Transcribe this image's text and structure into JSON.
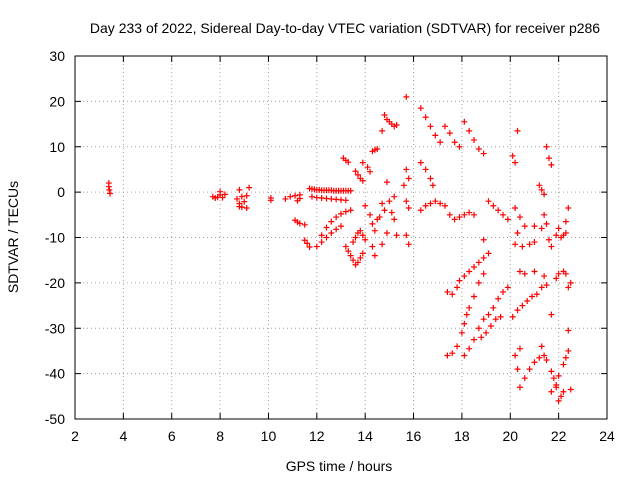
{
  "chart_data": {
    "type": "scatter",
    "title": "Day 233 of 2022, Sidereal Day-to-day VTEC variation (SDTVAR) for receiver p286",
    "xlabel": "GPS time / hours",
    "ylabel": "SDTVAR / TECUs",
    "xlim": [
      2,
      24
    ],
    "ylim": [
      -50,
      30
    ],
    "xticks": [
      2,
      4,
      6,
      8,
      10,
      12,
      14,
      16,
      18,
      20,
      22,
      24
    ],
    "yticks": [
      -50,
      -40,
      -30,
      -20,
      -10,
      0,
      10,
      20,
      30
    ],
    "grid": true,
    "marker": "+",
    "color": "#ff0000",
    "series": [
      {
        "name": "SDTVAR",
        "points": [
          [
            3.4,
            2.0
          ],
          [
            3.4,
            1.2
          ],
          [
            3.42,
            0.5
          ],
          [
            3.45,
            -0.3
          ],
          [
            7.7,
            -1.0
          ],
          [
            7.8,
            -1.3
          ],
          [
            7.9,
            -1.1
          ],
          [
            8.0,
            -0.6
          ],
          [
            8.1,
            -1.2
          ],
          [
            8.0,
            0.1
          ],
          [
            8.2,
            -0.5
          ],
          [
            8.7,
            -1.5
          ],
          [
            8.8,
            -2.5
          ],
          [
            8.9,
            -3.3
          ],
          [
            8.9,
            -1.0
          ],
          [
            8.8,
            0.5
          ],
          [
            9.0,
            -2.1
          ],
          [
            9.1,
            -0.8
          ],
          [
            9.2,
            1.0
          ],
          [
            9.1,
            -3.5
          ],
          [
            8.8,
            -3.2
          ],
          [
            10.1,
            -1.8
          ],
          [
            10.1,
            -1.3
          ],
          [
            10.7,
            -1.5
          ],
          [
            10.9,
            -1.0
          ],
          [
            11.1,
            -0.8
          ],
          [
            11.3,
            -0.6
          ],
          [
            11.3,
            -1.4
          ],
          [
            11.2,
            -1.9
          ],
          [
            11.1,
            -6.2
          ],
          [
            11.2,
            -6.6
          ],
          [
            11.3,
            -6.9
          ],
          [
            11.5,
            -7.2
          ],
          [
            11.5,
            -10.6
          ],
          [
            11.6,
            -11.3
          ],
          [
            11.7,
            -12.1
          ],
          [
            11.7,
            0.8
          ],
          [
            11.8,
            0.7
          ],
          [
            11.9,
            0.6
          ],
          [
            12.0,
            0.5
          ],
          [
            12.1,
            0.5
          ],
          [
            12.2,
            0.4
          ],
          [
            12.3,
            0.4
          ],
          [
            12.4,
            0.4
          ],
          [
            12.5,
            0.4
          ],
          [
            12.6,
            0.4
          ],
          [
            12.7,
            0.3
          ],
          [
            12.8,
            0.3
          ],
          [
            12.9,
            0.3
          ],
          [
            13.0,
            0.3
          ],
          [
            13.1,
            0.3
          ],
          [
            13.2,
            0.3
          ],
          [
            13.3,
            0.3
          ],
          [
            13.4,
            0.3
          ],
          [
            11.8,
            -1.0
          ],
          [
            12.0,
            -1.2
          ],
          [
            12.2,
            -1.3
          ],
          [
            12.4,
            -1.4
          ],
          [
            12.6,
            -1.5
          ],
          [
            12.8,
            -1.6
          ],
          [
            13.0,
            -1.7
          ],
          [
            13.2,
            -1.8
          ],
          [
            12.2,
            -9.5
          ],
          [
            12.4,
            -7.8
          ],
          [
            12.6,
            -6.5
          ],
          [
            12.8,
            -5.5
          ],
          [
            13.0,
            -4.8
          ],
          [
            13.2,
            -4.3
          ],
          [
            13.4,
            -4.0
          ],
          [
            12.0,
            -12.0
          ],
          [
            12.2,
            -11.0
          ],
          [
            12.4,
            -10.0
          ],
          [
            12.6,
            -9.0
          ],
          [
            12.8,
            -8.2
          ],
          [
            13.0,
            -7.5
          ],
          [
            13.1,
            7.5
          ],
          [
            13.2,
            7.0
          ],
          [
            13.3,
            6.6
          ],
          [
            13.6,
            4.6
          ],
          [
            13.7,
            3.8
          ],
          [
            13.8,
            3.0
          ],
          [
            13.9,
            2.5
          ],
          [
            13.2,
            -12.0
          ],
          [
            13.3,
            -13.0
          ],
          [
            13.4,
            -14.0
          ],
          [
            13.5,
            -15.0
          ],
          [
            13.6,
            -16.0
          ],
          [
            13.7,
            -15.5
          ],
          [
            13.8,
            -14.5
          ],
          [
            13.9,
            -13.5
          ],
          [
            13.5,
            -11.0
          ],
          [
            13.6,
            -10.0
          ],
          [
            13.7,
            -9.0
          ],
          [
            13.8,
            -8.5
          ],
          [
            13.9,
            -9.5
          ],
          [
            14.0,
            -10.5
          ],
          [
            13.9,
            6.5
          ],
          [
            14.1,
            5.5
          ],
          [
            14.2,
            4.5
          ],
          [
            14.0,
            -3.0
          ],
          [
            14.2,
            -5.0
          ],
          [
            14.3,
            -7.0
          ],
          [
            14.4,
            -8.5
          ],
          [
            14.5,
            -6.0
          ],
          [
            14.3,
            -12.0
          ],
          [
            14.4,
            -14.0
          ],
          [
            14.3,
            9.0
          ],
          [
            14.4,
            9.3
          ],
          [
            14.5,
            9.5
          ],
          [
            14.6,
            -5.5
          ],
          [
            14.7,
            -2.5
          ],
          [
            14.8,
            -4.0
          ],
          [
            14.9,
            -9.0
          ],
          [
            14.9,
            2.2
          ],
          [
            14.7,
            -11.5
          ],
          [
            14.7,
            13.5
          ],
          [
            14.8,
            17.0
          ],
          [
            14.9,
            16.0
          ],
          [
            15.0,
            15.5
          ],
          [
            15.1,
            15.0
          ],
          [
            15.2,
            14.5
          ],
          [
            15.3,
            14.8
          ],
          [
            15.0,
            -2.0
          ],
          [
            15.1,
            -4.5
          ],
          [
            15.2,
            -6.0
          ],
          [
            15.3,
            -9.5
          ],
          [
            15.2,
            -1.0
          ],
          [
            15.7,
            21.0
          ],
          [
            15.6,
            1.5
          ],
          [
            15.7,
            -2.0
          ],
          [
            15.8,
            -3.5
          ],
          [
            15.7,
            -9.5
          ],
          [
            15.8,
            -11.5
          ],
          [
            15.7,
            5.0
          ],
          [
            15.8,
            3.0
          ],
          [
            16.3,
            18.5
          ],
          [
            16.5,
            16.5
          ],
          [
            16.7,
            14.5
          ],
          [
            16.9,
            12.5
          ],
          [
            17.1,
            11.0
          ],
          [
            16.3,
            6.5
          ],
          [
            16.5,
            5.0
          ],
          [
            16.7,
            3.0
          ],
          [
            16.8,
            1.5
          ],
          [
            16.3,
            -4.0
          ],
          [
            16.5,
            -3.0
          ],
          [
            16.7,
            -2.5
          ],
          [
            16.9,
            -2.0
          ],
          [
            17.1,
            -2.5
          ],
          [
            17.3,
            -3.0
          ],
          [
            17.3,
            14.5
          ],
          [
            17.5,
            13.0
          ],
          [
            17.7,
            11.0
          ],
          [
            17.9,
            10.0
          ],
          [
            18.1,
            15.5
          ],
          [
            18.3,
            13.5
          ],
          [
            18.5,
            11.5
          ],
          [
            18.7,
            9.5
          ],
          [
            18.9,
            8.5
          ],
          [
            17.5,
            -5.0
          ],
          [
            17.7,
            -6.0
          ],
          [
            17.9,
            -5.5
          ],
          [
            18.1,
            -5.0
          ],
          [
            18.3,
            -4.5
          ],
          [
            18.5,
            -5.0
          ],
          [
            17.4,
            -22.0
          ],
          [
            17.6,
            -22.5
          ],
          [
            17.8,
            -21.0
          ],
          [
            17.9,
            -19.5
          ],
          [
            18.1,
            -18.5
          ],
          [
            18.3,
            -17.5
          ],
          [
            18.5,
            -16.5
          ],
          [
            18.7,
            -15.5
          ],
          [
            18.9,
            -14.5
          ],
          [
            19.1,
            -13.5
          ],
          [
            17.4,
            -36.0
          ],
          [
            17.6,
            -35.5
          ],
          [
            17.8,
            -34.0
          ],
          [
            18.0,
            -31.0
          ],
          [
            18.1,
            -29.0
          ],
          [
            18.2,
            -27.0
          ],
          [
            18.3,
            -25.5
          ],
          [
            18.5,
            -23.0
          ],
          [
            18.7,
            -20.0
          ],
          [
            18.9,
            -18.0
          ],
          [
            18.1,
            -36.0
          ],
          [
            18.3,
            -34.5
          ],
          [
            18.5,
            -32.5
          ],
          [
            18.7,
            -30.0
          ],
          [
            18.9,
            -28.0
          ],
          [
            19.1,
            -27.0
          ],
          [
            19.3,
            -25.5
          ],
          [
            19.5,
            -23.5
          ],
          [
            19.7,
            -22.0
          ],
          [
            19.9,
            -21.0
          ],
          [
            18.8,
            -32.0
          ],
          [
            19.0,
            -31.0
          ],
          [
            19.2,
            -29.5
          ],
          [
            19.4,
            -28.0
          ],
          [
            19.6,
            -27.5
          ],
          [
            19.1,
            -2.0
          ],
          [
            19.3,
            -3.0
          ],
          [
            19.5,
            -4.0
          ],
          [
            19.7,
            -5.0
          ],
          [
            19.9,
            -6.0
          ],
          [
            18.9,
            -10.5
          ],
          [
            20.1,
            8.0
          ],
          [
            20.2,
            6.5
          ],
          [
            20.3,
            13.5
          ],
          [
            20.3,
            -9.0
          ],
          [
            20.2,
            -3.5
          ],
          [
            20.4,
            -5.5
          ],
          [
            20.6,
            -7.5
          ],
          [
            20.1,
            -27.5
          ],
          [
            20.3,
            -26.0
          ],
          [
            20.5,
            -25.0
          ],
          [
            20.7,
            -24.0
          ],
          [
            20.9,
            -23.0
          ],
          [
            21.1,
            -22.5
          ],
          [
            21.3,
            -21.0
          ],
          [
            21.5,
            -20.5
          ],
          [
            20.2,
            -36.0
          ],
          [
            20.4,
            -34.5
          ],
          [
            20.3,
            -39.0
          ],
          [
            20.4,
            -43.0
          ],
          [
            20.6,
            -41.0
          ],
          [
            20.8,
            -39.0
          ],
          [
            21.0,
            -37.5
          ],
          [
            21.2,
            -36.5
          ],
          [
            21.4,
            -36.0
          ],
          [
            21.5,
            -37.0
          ],
          [
            21.3,
            -34.0
          ],
          [
            20.2,
            -11.5
          ],
          [
            20.5,
            -12.0
          ],
          [
            20.8,
            -11.5
          ],
          [
            21.0,
            -11.0
          ],
          [
            20.4,
            -17.5
          ],
          [
            21.0,
            -17.5
          ],
          [
            20.6,
            -18.0
          ],
          [
            21.0,
            -7.5
          ],
          [
            21.3,
            -8.0
          ],
          [
            21.5,
            -7.0
          ],
          [
            21.4,
            -5.0
          ],
          [
            21.2,
            1.5
          ],
          [
            21.3,
            0.5
          ],
          [
            21.4,
            -0.5
          ],
          [
            21.5,
            10.0
          ],
          [
            21.6,
            7.5
          ],
          [
            21.7,
            6.0
          ],
          [
            21.6,
            -10.5
          ],
          [
            21.7,
            -12.0
          ],
          [
            21.4,
            -18.5
          ],
          [
            21.7,
            -27.0
          ],
          [
            21.7,
            -39.5
          ],
          [
            21.8,
            -41.0
          ],
          [
            21.9,
            -42.5
          ],
          [
            21.7,
            -44.0
          ],
          [
            21.9,
            -9.5
          ],
          [
            22.0,
            -8.0
          ],
          [
            22.1,
            -10.0
          ],
          [
            22.2,
            -9.5
          ],
          [
            22.3,
            -9.0
          ],
          [
            21.9,
            -19.0
          ],
          [
            22.0,
            -18.0
          ],
          [
            22.2,
            -17.5
          ],
          [
            22.3,
            -18.0
          ],
          [
            21.9,
            -43.0
          ],
          [
            22.0,
            -46.0
          ],
          [
            22.1,
            -45.0
          ],
          [
            22.2,
            -44.0
          ],
          [
            22.0,
            -40.5
          ],
          [
            22.2,
            -38.0
          ],
          [
            22.3,
            -36.5
          ],
          [
            22.4,
            -35.0
          ],
          [
            22.3,
            -6.5
          ],
          [
            22.4,
            -3.5
          ],
          [
            22.4,
            -21.0
          ],
          [
            22.5,
            -20.0
          ],
          [
            22.4,
            -30.5
          ],
          [
            22.5,
            -43.5
          ]
        ]
      }
    ]
  }
}
